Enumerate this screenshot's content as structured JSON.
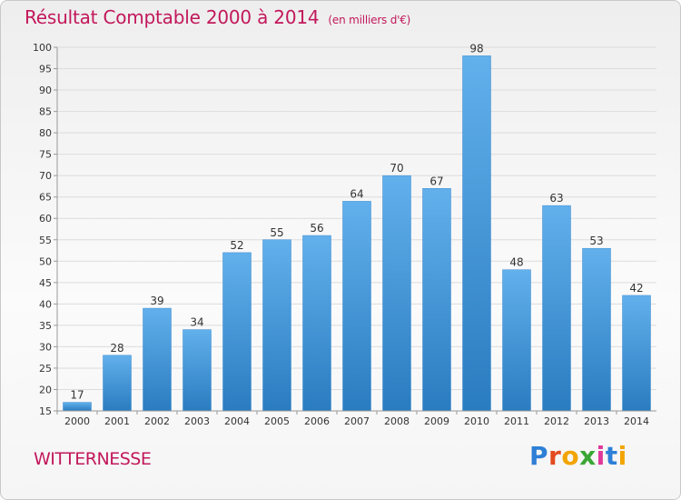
{
  "title": "Résultat Comptable 2000 à 2014",
  "subtitle": "(en milliers d'€)",
  "commune": "WITTERNESSE",
  "logo": {
    "text": "Proxiti",
    "letter_colors": [
      "#2e7fd6",
      "#e34a1f",
      "#f2a400",
      "#3aa635",
      "#e0379a",
      "#2e7fd6",
      "#f2a400"
    ]
  },
  "colors": {
    "title": "#c2185b",
    "bar_top": "#62b0ec",
    "bar_bottom": "#2a7cc0",
    "grid": "#dcdcdc",
    "axis": "#999999",
    "text": "#333333"
  },
  "chart_data": {
    "type": "bar",
    "title": "Résultat Comptable 2000 à 2014",
    "subtitle": "(en milliers d'€)",
    "categories": [
      "2000",
      "2001",
      "2002",
      "2003",
      "2004",
      "2005",
      "2006",
      "2007",
      "2008",
      "2009",
      "2010",
      "2011",
      "2012",
      "2013",
      "2014"
    ],
    "values": [
      17,
      28,
      39,
      34,
      52,
      55,
      56,
      64,
      70,
      67,
      98,
      48,
      63,
      53,
      42
    ],
    "ylim": [
      15,
      100
    ],
    "yticks": [
      15,
      20,
      25,
      30,
      35,
      40,
      45,
      50,
      55,
      60,
      65,
      70,
      75,
      80,
      85,
      90,
      95,
      100
    ],
    "grid": true,
    "data_labels": true
  }
}
